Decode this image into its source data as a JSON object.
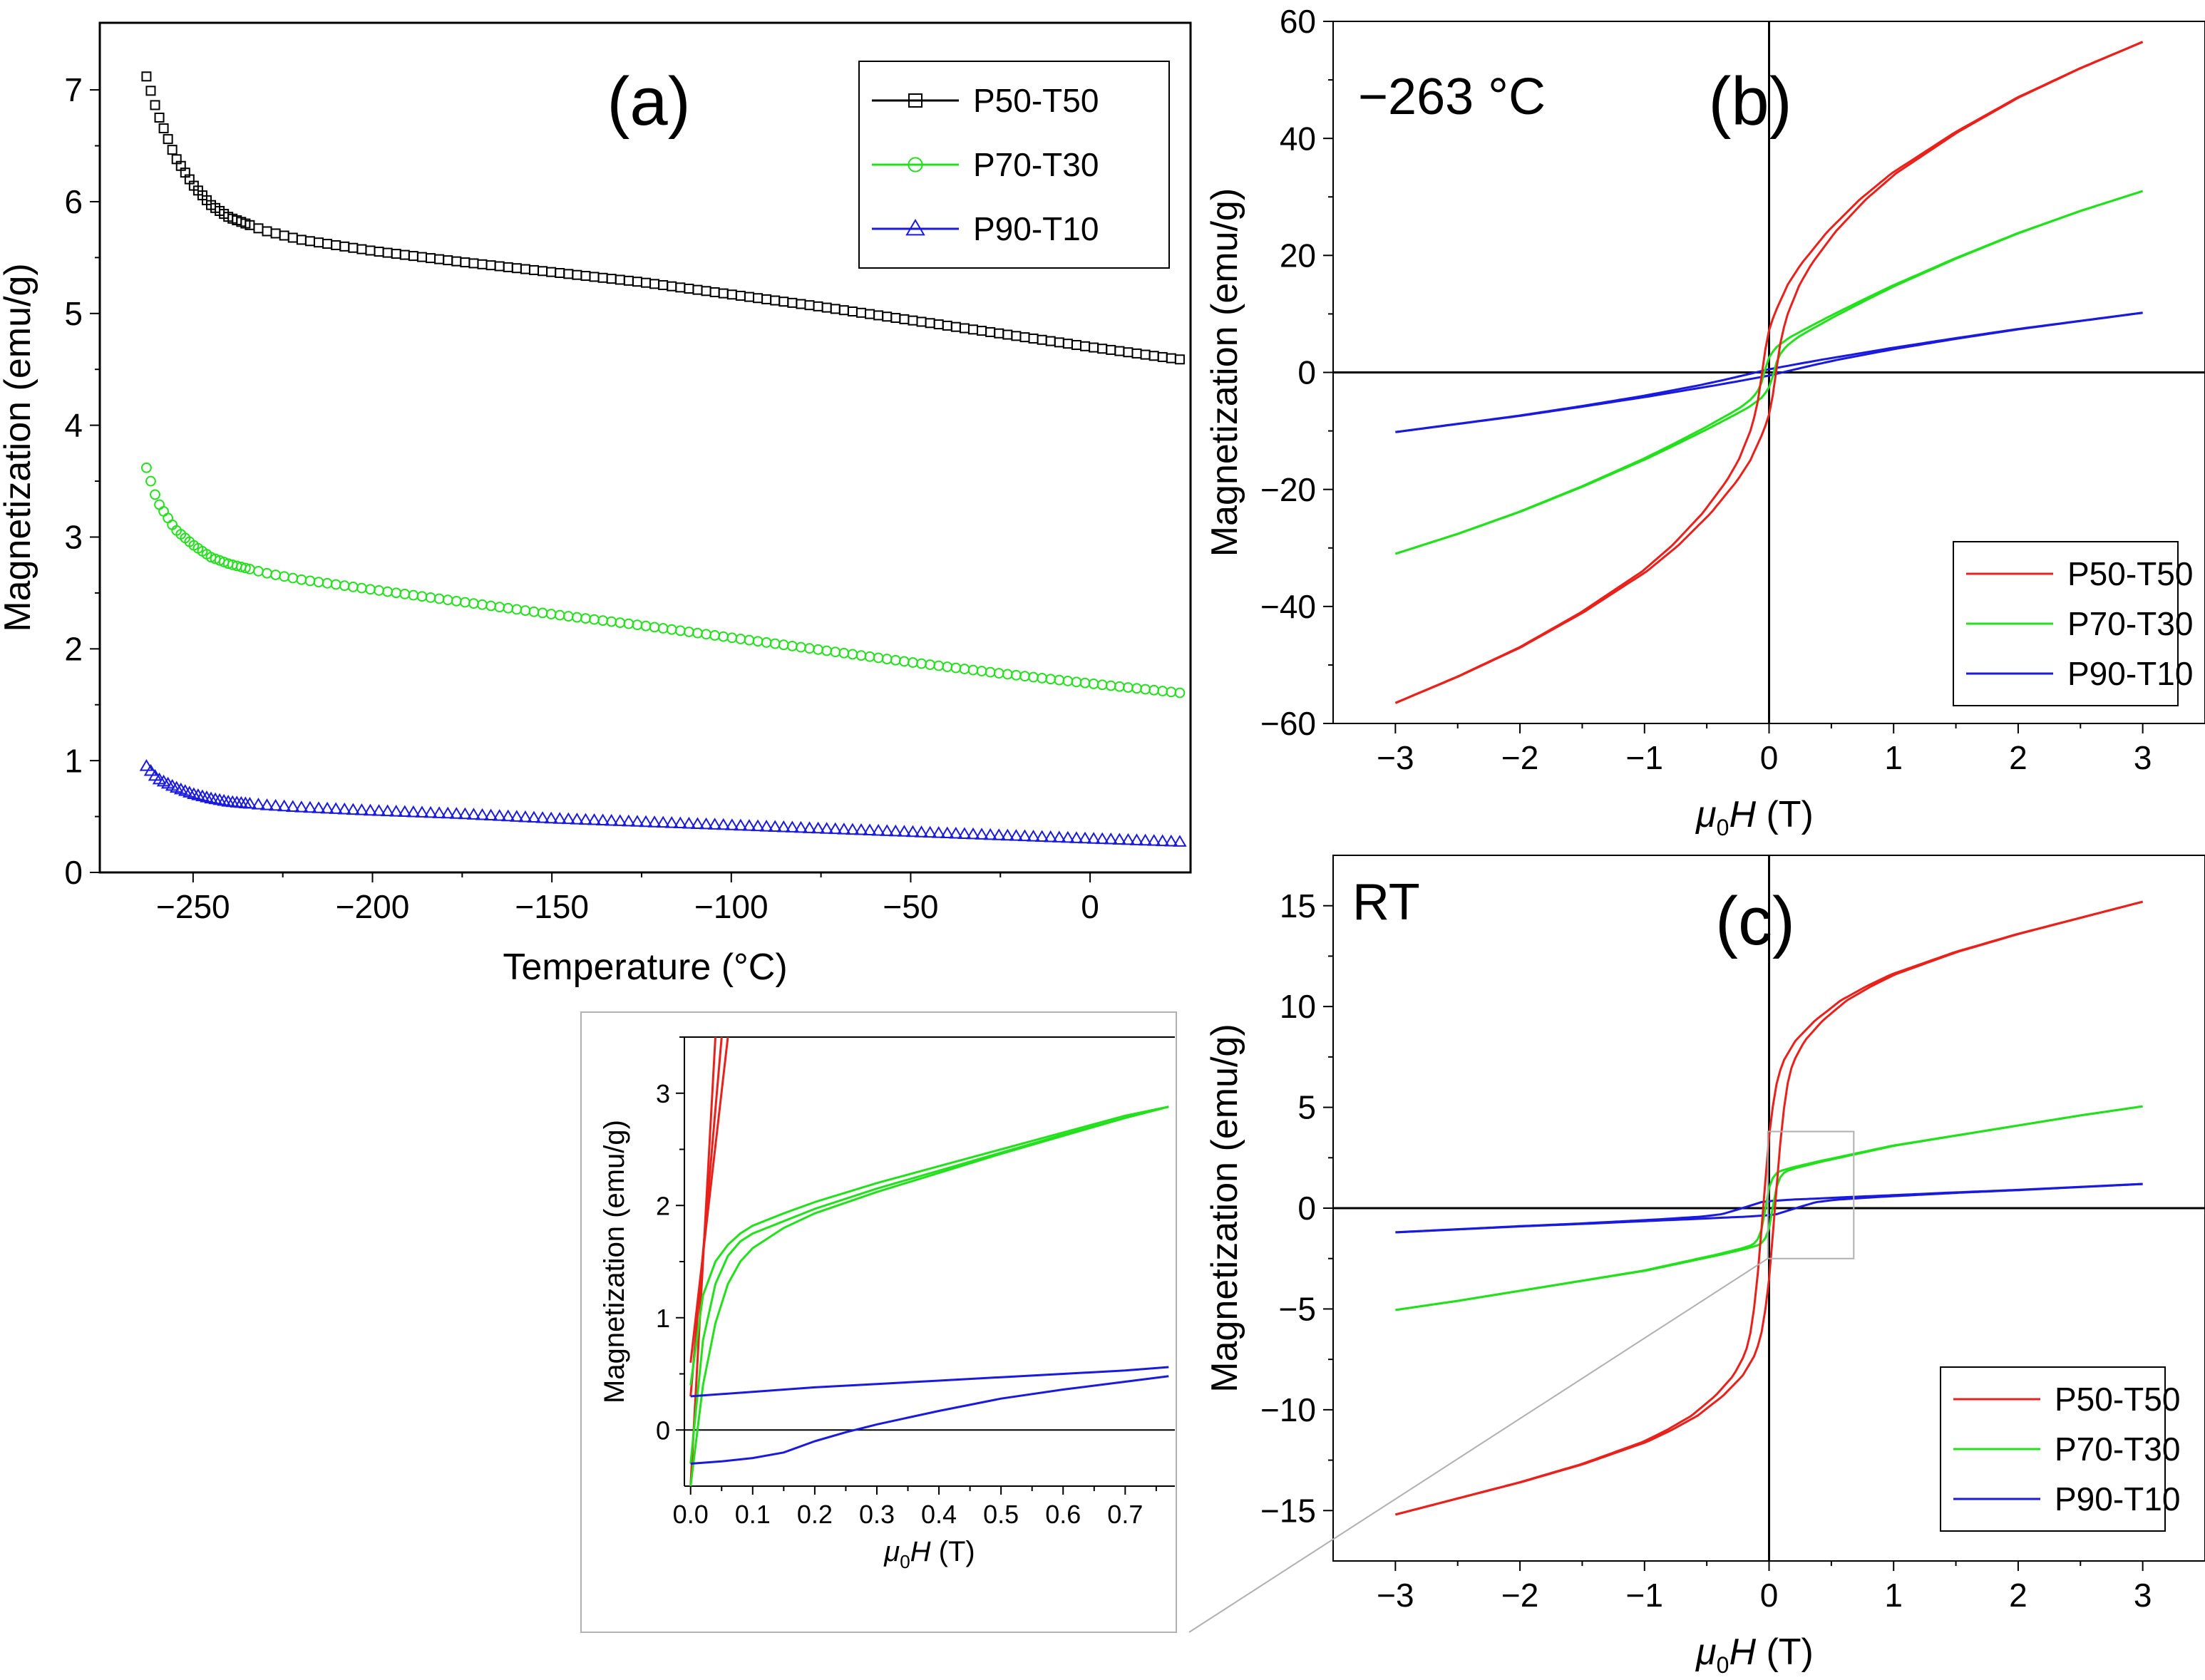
{
  "colors": {
    "P50-T50": "#e8211b",
    "P70-T30": "#22e01c",
    "P90-T10": "#1a1adf",
    "axis": "#000000",
    "frame": "#c0c0c0"
  },
  "chart_data": [
    {
      "id": "a",
      "type": "scatter",
      "panel_label": "(a)",
      "title": "",
      "xlabel": "Temperature (°C)",
      "ylabel": "Magnetization (emu/g)",
      "xlim": [
        -276,
        28
      ],
      "ylim": [
        0,
        7.6
      ],
      "xticks": [
        -250,
        -200,
        -150,
        -100,
        -50,
        0
      ],
      "xtick_labels": [
        "−250",
        "−200",
        "−150",
        "−100",
        "−50",
        "0"
      ],
      "yticks": [
        0,
        1,
        2,
        3,
        4,
        5,
        6,
        7
      ],
      "ytick_labels": [
        "0",
        "1",
        "2",
        "3",
        "4",
        "5",
        "6",
        "7"
      ],
      "legend": {
        "placement": "top-right",
        "entries": [
          "P50-T50",
          "P70-T30",
          "P90-T10"
        ]
      },
      "series": [
        {
          "name": "P50-T50",
          "marker": "square",
          "x": [
            -263,
            -260,
            -255,
            -250,
            -245,
            -240,
            -230,
            -220,
            -200,
            -175,
            -150,
            -125,
            -100,
            -75,
            -50,
            -25,
            0,
            27
          ],
          "y": [
            7.12,
            6.8,
            6.4,
            6.15,
            5.97,
            5.86,
            5.74,
            5.66,
            5.56,
            5.46,
            5.37,
            5.28,
            5.17,
            5.06,
            4.94,
            4.82,
            4.7,
            4.58
          ]
        },
        {
          "name": "P70-T30",
          "marker": "circle",
          "x": [
            -263,
            -260,
            -255,
            -250,
            -245,
            -240,
            -230,
            -220,
            -200,
            -175,
            -150,
            -125,
            -100,
            -75,
            -50,
            -25,
            0,
            27
          ],
          "y": [
            3.62,
            3.32,
            3.07,
            2.93,
            2.82,
            2.76,
            2.68,
            2.62,
            2.53,
            2.42,
            2.31,
            2.21,
            2.1,
            1.99,
            1.88,
            1.78,
            1.69,
            1.6
          ]
        },
        {
          "name": "P90-T10",
          "marker": "triangle",
          "x": [
            -263,
            -260,
            -255,
            -250,
            -245,
            -240,
            -230,
            -220,
            -200,
            -175,
            -150,
            -125,
            -100,
            -75,
            -50,
            -25,
            0,
            27
          ],
          "y": [
            0.95,
            0.84,
            0.76,
            0.7,
            0.66,
            0.63,
            0.6,
            0.58,
            0.55,
            0.52,
            0.48,
            0.45,
            0.42,
            0.39,
            0.36,
            0.33,
            0.3,
            0.27
          ]
        }
      ]
    },
    {
      "id": "b",
      "type": "line",
      "panel_label": "(b)",
      "annotation": "−263 °C",
      "xlabel_main": "μ",
      "xlabel_sub": "0",
      "xlabel_var": "H",
      "xlabel_unit": " (T)",
      "ylabel": "Magnetization (emu/g)",
      "xlim": [
        -3.5,
        3.5
      ],
      "ylim": [
        -60,
        60
      ],
      "xticks": [
        -3,
        -2,
        -1,
        0,
        1,
        2,
        3
      ],
      "xtick_labels": [
        "−3",
        "−2",
        "−1",
        "0",
        "1",
        "2",
        "3"
      ],
      "yticks": [
        -60,
        -40,
        -20,
        0,
        20,
        40,
        60
      ],
      "ytick_labels": [
        "−60",
        "−40",
        "−20",
        "0",
        "20",
        "40",
        "60"
      ],
      "legend": {
        "placement": "bottom-right",
        "entries": [
          "P50-T50",
          "P70-T30",
          "P90-T10"
        ]
      },
      "series": [
        {
          "name": "P50-T50",
          "x": [
            0,
            0.02,
            0.05,
            0.1,
            0.2,
            0.3,
            0.5,
            0.75,
            1,
            1.5,
            2,
            2.5,
            3
          ],
          "y": [
            0,
            3,
            6.5,
            10,
            15,
            18.5,
            24,
            29.5,
            34,
            41,
            47,
            52,
            56.5
          ],
          "hysteresis": 0.06
        },
        {
          "name": "P70-T30",
          "x": [
            0,
            0.02,
            0.05,
            0.1,
            0.2,
            0.3,
            0.5,
            0.75,
            1,
            1.5,
            2,
            2.5,
            3
          ],
          "y": [
            0,
            1.6,
            3,
            4.4,
            6,
            7.2,
            9.5,
            12.2,
            14.8,
            19.5,
            23.8,
            27.6,
            31
          ],
          "hysteresis": 0.04
        },
        {
          "name": "P90-T10",
          "x": [
            0,
            0.1,
            0.3,
            0.5,
            1,
            1.5,
            2,
            2.5,
            3
          ],
          "y": [
            0,
            0.45,
            1.35,
            2.2,
            4.1,
            5.8,
            7.4,
            8.8,
            10.2
          ],
          "hysteresis": 0.12
        }
      ]
    },
    {
      "id": "c",
      "type": "line",
      "panel_label": "(c)",
      "annotation": "RT",
      "xlabel_main": "μ",
      "xlabel_sub": "0",
      "xlabel_var": "H",
      "xlabel_unit": " (T)",
      "ylabel": "Magnetization (emu/g)",
      "xlim": [
        -3.5,
        3.5
      ],
      "ylim": [
        -17.5,
        17.5
      ],
      "xticks": [
        -3,
        -2,
        -1,
        0,
        1,
        2,
        3
      ],
      "xtick_labels": [
        "−3",
        "−2",
        "−1",
        "0",
        "1",
        "2",
        "3"
      ],
      "yticks": [
        -15,
        -10,
        -5,
        0,
        5,
        10,
        15
      ],
      "ytick_labels": [
        "−15",
        "−10",
        "−5",
        "0",
        "5",
        "10",
        "15"
      ],
      "legend": {
        "placement": "bottom-right",
        "entries": [
          "P50-T50",
          "P70-T30",
          "P90-T10"
        ]
      },
      "series": [
        {
          "name": "P50-T50",
          "x": [
            0,
            0.03,
            0.06,
            0.1,
            0.15,
            0.25,
            0.4,
            0.6,
            0.8,
            1,
            1.5,
            2,
            2.5,
            3
          ],
          "y": [
            0,
            2.2,
            4.2,
            6,
            7.2,
            8.3,
            9.3,
            10.3,
            11,
            11.6,
            12.7,
            13.6,
            14.4,
            15.2
          ],
          "hysteresis": 0.05
        },
        {
          "name": "P70-T30",
          "x": [
            0,
            0.02,
            0.05,
            0.08,
            0.12,
            0.2,
            0.4,
            0.7,
            1,
            1.5,
            2,
            2.5,
            3
          ],
          "y": [
            0,
            0.8,
            1.4,
            1.7,
            1.85,
            2.0,
            2.3,
            2.7,
            3.1,
            3.6,
            4.1,
            4.6,
            5.05
          ],
          "hysteresis": 0.03
        },
        {
          "name": "P90-T10",
          "x": [
            0,
            0.2,
            0.4,
            0.77,
            1,
            1.5,
            2,
            2.5,
            3
          ],
          "y": [
            0,
            0.3,
            0.42,
            0.55,
            0.62,
            0.77,
            0.9,
            1.05,
            1.2
          ],
          "hysteresis": 0.28
        }
      ]
    },
    {
      "id": "inset",
      "type": "line",
      "title": "",
      "xlabel_main": "μ",
      "xlabel_sub": "0",
      "xlabel_var": "H",
      "xlabel_unit": " (T)",
      "ylabel": "Magnetization (emu/g)",
      "xlim": [
        -0.01,
        0.78
      ],
      "ylim": [
        -0.5,
        3.5
      ],
      "xticks": [
        0,
        0.1,
        0.2,
        0.3,
        0.4,
        0.5,
        0.6,
        0.7
      ],
      "xtick_labels": [
        "0.0",
        "0.1",
        "0.2",
        "0.3",
        "0.4",
        "0.5",
        "0.6",
        "0.7"
      ],
      "yticks": [
        0,
        1,
        2,
        3
      ],
      "ytick_labels": [
        "0",
        "1",
        "2",
        "3"
      ],
      "series": [
        {
          "name": "P50-T50 up",
          "color_key": "P50-T50",
          "x": [
            0,
            0.04
          ],
          "y": [
            -0.5,
            3.5
          ]
        },
        {
          "name": "P50-T50 mid",
          "color_key": "P50-T50",
          "x": [
            0,
            0.05
          ],
          "y": [
            0.3,
            3.5
          ]
        },
        {
          "name": "P50-T50 down",
          "color_key": "P50-T50",
          "x": [
            0,
            0.06
          ],
          "y": [
            0.6,
            3.5
          ]
        },
        {
          "name": "P70-T30 up",
          "color_key": "P70-T30",
          "x": [
            0,
            0.02,
            0.04,
            0.06,
            0.08,
            0.1,
            0.15,
            0.2,
            0.3,
            0.4,
            0.5,
            0.6,
            0.7,
            0.77
          ],
          "y": [
            -0.5,
            0.4,
            0.95,
            1.3,
            1.5,
            1.62,
            1.8,
            1.93,
            2.12,
            2.29,
            2.46,
            2.62,
            2.78,
            2.88
          ]
        },
        {
          "name": "P70-T30 mid",
          "color_key": "P70-T30",
          "x": [
            0,
            0.02,
            0.04,
            0.06,
            0.08,
            0.1,
            0.15,
            0.2,
            0.3,
            0.4,
            0.5,
            0.6,
            0.7,
            0.77
          ],
          "y": [
            -0.3,
            0.8,
            1.3,
            1.55,
            1.68,
            1.75,
            1.86,
            1.97,
            2.15,
            2.31,
            2.47,
            2.63,
            2.78,
            2.88
          ]
        },
        {
          "name": "P70-T30 down",
          "color_key": "P70-T30",
          "x": [
            0,
            0.02,
            0.04,
            0.06,
            0.08,
            0.1,
            0.15,
            0.2,
            0.3,
            0.4,
            0.5,
            0.6,
            0.7,
            0.77
          ],
          "y": [
            0.4,
            1.2,
            1.5,
            1.65,
            1.75,
            1.82,
            1.93,
            2.03,
            2.2,
            2.35,
            2.5,
            2.65,
            2.8,
            2.88
          ]
        },
        {
          "name": "P90-T10 upper",
          "color_key": "P90-T10",
          "x": [
            0,
            0.1,
            0.2,
            0.3,
            0.4,
            0.5,
            0.6,
            0.7,
            0.77
          ],
          "y": [
            0.3,
            0.34,
            0.38,
            0.41,
            0.44,
            0.47,
            0.5,
            0.53,
            0.56
          ]
        },
        {
          "name": "P90-T10 lower",
          "color_key": "P90-T10",
          "x": [
            0,
            0.05,
            0.1,
            0.15,
            0.2,
            0.25,
            0.3,
            0.4,
            0.5,
            0.6,
            0.7,
            0.77
          ],
          "y": [
            -0.3,
            -0.28,
            -0.25,
            -0.2,
            -0.1,
            -0.02,
            0.05,
            0.17,
            0.28,
            0.36,
            0.43,
            0.48
          ]
        }
      ]
    }
  ]
}
